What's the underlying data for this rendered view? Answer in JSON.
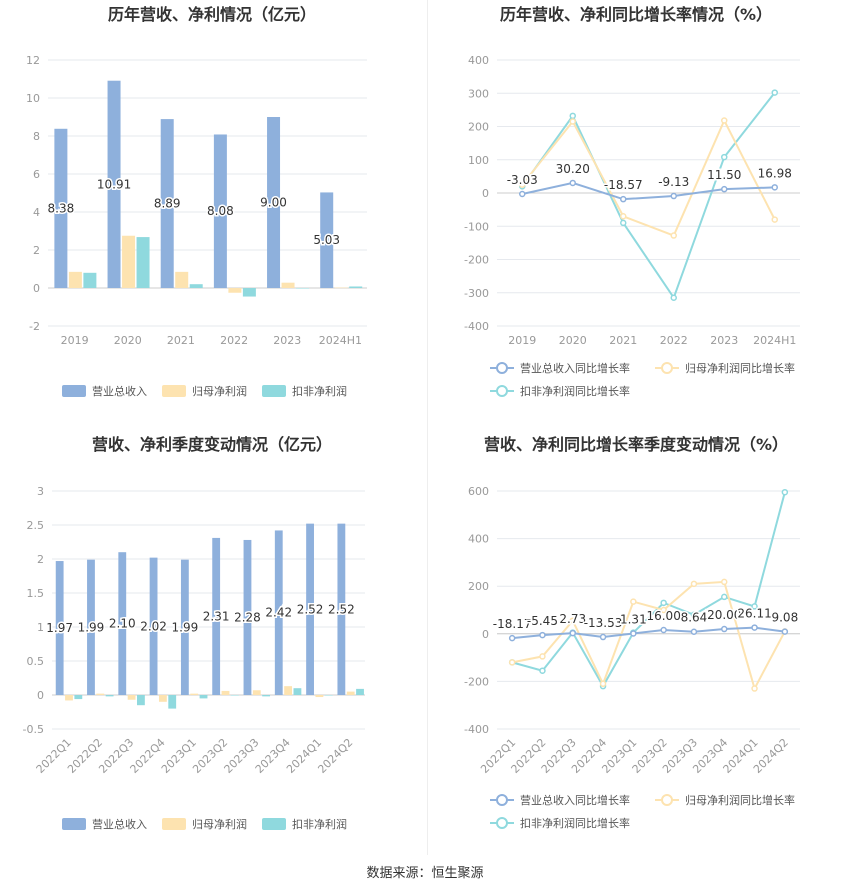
{
  "source_text": "数据来源：恒生聚源",
  "colors": {
    "revenue": "#8eb0dc",
    "net_profit": "#fde3b0",
    "deducted_profit": "#8fd9de",
    "grid": "#e6e9ee",
    "axis_text": "#999999",
    "title": "#333333"
  },
  "chart_data": [
    {
      "id": "annual-bar",
      "type": "bar",
      "title": "历年营收、净利情况（亿元）",
      "categories": [
        "2019",
        "2020",
        "2021",
        "2022",
        "2023",
        "2024H1"
      ],
      "ylim": [
        -2,
        12
      ],
      "yticks": [
        -2,
        0,
        2,
        4,
        6,
        8,
        10,
        12
      ],
      "grid": true,
      "legend_position": "bottom",
      "series": [
        {
          "name": "营业总收入",
          "values": [
            8.38,
            10.91,
            8.89,
            8.08,
            9.0,
            5.03
          ],
          "labels": [
            "8.38",
            "10.91",
            "8.89",
            "8.08",
            "9.00",
            "5.03"
          ]
        },
        {
          "name": "归母净利润",
          "values": [
            0.85,
            2.75,
            0.85,
            -0.25,
            0.28,
            0.02
          ]
        },
        {
          "name": "扣非净利润",
          "values": [
            0.8,
            2.68,
            0.2,
            -0.45,
            0.0,
            0.08
          ]
        }
      ]
    },
    {
      "id": "annual-line",
      "type": "line",
      "title": "历年营收、净利同比增长率情况（%）",
      "categories": [
        "2019",
        "2020",
        "2021",
        "2022",
        "2023",
        "2024H1"
      ],
      "ylim": [
        -400,
        400
      ],
      "yticks": [
        -400,
        -300,
        -200,
        -100,
        0,
        100,
        200,
        300,
        400
      ],
      "grid": true,
      "legend_position": "bottom",
      "series": [
        {
          "name": "营业总收入同比增长率",
          "values": [
            -3.03,
            30.2,
            -18.57,
            -9.13,
            11.5,
            16.98
          ],
          "labels": [
            "-3.03",
            "30.20",
            "-18.57",
            "-9.13",
            "11.50",
            "16.98"
          ]
        },
        {
          "name": "归母净利润同比增长率",
          "values": [
            25,
            215,
            -70,
            -128,
            218,
            -80
          ]
        },
        {
          "name": "扣非净利润同比增长率",
          "values": [
            20,
            232,
            -90,
            -315,
            108,
            302
          ]
        }
      ]
    },
    {
      "id": "quarter-bar",
      "type": "bar",
      "title": "营收、净利季度变动情况（亿元）",
      "categories": [
        "2022Q1",
        "2022Q2",
        "2022Q3",
        "2022Q4",
        "2023Q1",
        "2023Q2",
        "2023Q3",
        "2023Q4",
        "2024Q1",
        "2024Q2"
      ],
      "ylim": [
        -0.5,
        3
      ],
      "yticks": [
        -0.5,
        0,
        0.5,
        1,
        1.5,
        2,
        2.5,
        3
      ],
      "grid": true,
      "legend_position": "bottom",
      "series": [
        {
          "name": "营业总收入",
          "values": [
            1.97,
            1.99,
            2.1,
            2.02,
            1.99,
            2.31,
            2.28,
            2.42,
            2.52,
            2.52
          ],
          "labels": [
            "1.97",
            "1.99",
            "2.10",
            "2.02",
            "1.99",
            "2.31",
            "2.28",
            "2.42",
            "2.52",
            "2.52"
          ]
        },
        {
          "name": "归母净利润",
          "values": [
            -0.08,
            0.02,
            -0.07,
            -0.1,
            0.02,
            0.06,
            0.07,
            0.13,
            -0.03,
            0.05
          ]
        },
        {
          "name": "扣非净利润",
          "values": [
            -0.06,
            -0.02,
            -0.15,
            -0.2,
            -0.05,
            0.0,
            -0.02,
            0.1,
            0.0,
            0.09
          ]
        }
      ]
    },
    {
      "id": "quarter-line",
      "type": "line",
      "title": "营收、净利同比增长率季度变动情况（%）",
      "categories": [
        "2022Q1",
        "2022Q2",
        "2022Q3",
        "2022Q4",
        "2023Q1",
        "2023Q2",
        "2023Q3",
        "2023Q4",
        "2024Q1",
        "2024Q2"
      ],
      "ylim": [
        -400,
        600
      ],
      "yticks": [
        -400,
        -200,
        0,
        200,
        400,
        600
      ],
      "grid": true,
      "legend_position": "bottom",
      "series": [
        {
          "name": "营业总收入同比增长率",
          "values": [
            -18.17,
            -5.45,
            2.73,
            -13.53,
            1.31,
            16.0,
            8.64,
            20.0,
            26.11,
            9.08
          ],
          "labels": [
            "-18.17",
            "-5.45",
            "2.73",
            "-13.53",
            "1.31",
            "16.00",
            "8.64",
            "20.00",
            "26.11",
            "9.08"
          ]
        },
        {
          "name": "归母净利润同比增长率",
          "values": [
            -120,
            -95,
            55,
            -210,
            135,
            100,
            210,
            218,
            -230,
            10
          ]
        },
        {
          "name": "扣非净利润同比增长率",
          "values": [
            -120,
            -155,
            5,
            -220,
            5,
            130,
            80,
            155,
            115,
            595
          ]
        }
      ]
    }
  ]
}
